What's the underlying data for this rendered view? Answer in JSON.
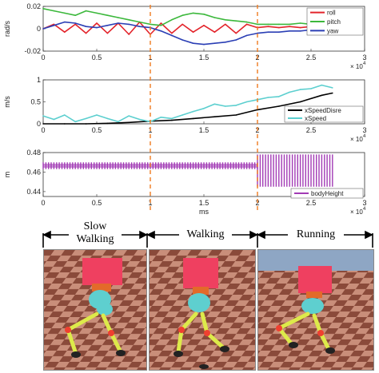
{
  "chart_data": [
    {
      "type": "line",
      "ylabel": "rad/s",
      "xlim": [
        0,
        30000
      ],
      "ylim": [
        -0.02,
        0.02
      ],
      "x_ticks": [
        "0",
        "0.5",
        "1",
        "1.5",
        "2",
        "2.5",
        "3"
      ],
      "y_ticks": [
        "0.02",
        "0",
        "-0.02"
      ],
      "x_multiplier": "× 10",
      "x_multiplier_exp": "4",
      "legend_position": "top-right",
      "series": [
        {
          "name": "roll",
          "color": "#e3242b",
          "x": [
            0,
            1000,
            2000,
            3000,
            4000,
            5000,
            6000,
            7000,
            8000,
            9000,
            10000,
            11000,
            12000,
            13000,
            14000,
            15000,
            16000,
            17000,
            18000,
            19000,
            20000,
            21000,
            22000,
            23000,
            24000,
            25000,
            26000,
            27000
          ],
          "y": [
            0.0,
            0.004,
            -0.003,
            0.004,
            -0.004,
            0.005,
            -0.004,
            0.005,
            -0.005,
            0.006,
            -0.005,
            0.005,
            -0.004,
            0.004,
            -0.003,
            0.003,
            -0.003,
            0.004,
            -0.004,
            0.004,
            0.001,
            0.002,
            0.001,
            0.002,
            0.001,
            0.002,
            0.001,
            0.002
          ]
        },
        {
          "name": "pitch",
          "color": "#3cb83c",
          "x": [
            0,
            1000,
            2000,
            3000,
            4000,
            5000,
            6000,
            7000,
            8000,
            9000,
            10000,
            11000,
            12000,
            13000,
            14000,
            15000,
            16000,
            17000,
            18000,
            19000,
            20000,
            21000,
            22000,
            23000,
            24000,
            25000,
            26000,
            27000
          ],
          "y": [
            0.018,
            0.016,
            0.014,
            0.012,
            0.016,
            0.014,
            0.012,
            0.01,
            0.008,
            0.006,
            0.004,
            0.003,
            0.008,
            0.012,
            0.014,
            0.013,
            0.01,
            0.008,
            0.007,
            0.006,
            0.004,
            0.004,
            0.004,
            0.004,
            0.005,
            0.004,
            0.004,
            0.004
          ]
        },
        {
          "name": "yaw",
          "color": "#2b3fb5",
          "x": [
            0,
            1000,
            2000,
            3000,
            4000,
            5000,
            6000,
            7000,
            8000,
            9000,
            10000,
            11000,
            12000,
            13000,
            14000,
            15000,
            16000,
            17000,
            18000,
            19000,
            20000,
            21000,
            22000,
            23000,
            24000,
            25000,
            26000,
            27000
          ],
          "y": [
            0.0,
            0.003,
            0.006,
            0.005,
            0.002,
            0.001,
            0.003,
            0.005,
            0.004,
            0.002,
            0.001,
            -0.002,
            -0.006,
            -0.01,
            -0.013,
            -0.014,
            -0.013,
            -0.012,
            -0.01,
            -0.006,
            -0.004,
            -0.003,
            -0.003,
            -0.002,
            -0.002,
            -0.001,
            -0.001,
            -0.001
          ]
        }
      ]
    },
    {
      "type": "line",
      "ylabel": "m/s",
      "xlim": [
        0,
        30000
      ],
      "ylim": [
        0,
        1
      ],
      "x_ticks": [
        "0",
        "0.5",
        "1",
        "1.5",
        "2",
        "2.5",
        "3"
      ],
      "y_ticks": [
        "1",
        "0.5",
        "0"
      ],
      "x_multiplier": "× 10",
      "x_multiplier_exp": "4",
      "legend_position": "bottom-right",
      "series": [
        {
          "name": "xSpeedDisre",
          "color": "#000000",
          "x": [
            0,
            2000,
            4000,
            6000,
            8000,
            10000,
            12000,
            14000,
            16000,
            18000,
            20000,
            22000,
            24000,
            26000,
            27000
          ],
          "y": [
            0.0,
            0.0,
            0.0,
            0.01,
            0.03,
            0.06,
            0.08,
            0.12,
            0.16,
            0.2,
            0.32,
            0.4,
            0.5,
            0.65,
            0.7
          ]
        },
        {
          "name": "xSpeed",
          "color": "#5ccfcf",
          "x": [
            0,
            1000,
            2000,
            3000,
            4000,
            5000,
            6000,
            7000,
            8000,
            9000,
            10000,
            11000,
            12000,
            13000,
            14000,
            15000,
            16000,
            17000,
            18000,
            19000,
            20000,
            21000,
            22000,
            23000,
            24000,
            25000,
            26000,
            27000
          ],
          "y": [
            0.18,
            0.1,
            0.2,
            0.05,
            0.12,
            0.2,
            0.12,
            0.05,
            0.18,
            0.1,
            0.05,
            0.15,
            0.12,
            0.2,
            0.28,
            0.35,
            0.45,
            0.4,
            0.42,
            0.5,
            0.55,
            0.6,
            0.62,
            0.72,
            0.78,
            0.8,
            0.88,
            0.82
          ]
        }
      ]
    },
    {
      "type": "line",
      "ylabel": "m",
      "xlabel": "ms",
      "xlim": [
        0,
        30000
      ],
      "ylim": [
        0.435,
        0.48
      ],
      "x_ticks": [
        "0",
        "0.5",
        "1",
        "1.5",
        "2",
        "2.5",
        "3"
      ],
      "y_ticks": [
        "0.48",
        "0.46",
        "0.44"
      ],
      "x_multiplier": "× 10",
      "x_multiplier_exp": "4",
      "legend_position": "bottom-right",
      "series": [
        {
          "name": "bodyHeight",
          "color": "#a23bb5",
          "segments": [
            {
              "x_range": [
                0,
                20000
              ],
              "low": 0.463,
              "high": 0.47
            },
            {
              "x_range": [
                20000,
                27000
              ],
              "low": 0.445,
              "high": 0.478
            }
          ]
        }
      ]
    }
  ],
  "phases": {
    "boundaries_x": [
      10000,
      20000
    ],
    "labels": [
      "Slow\nWalking",
      "Walking",
      "Running"
    ]
  },
  "colors": {
    "phase_line": "#f07b1f",
    "robot_body": "#ef4060",
    "robot_head": "#5ecfcf",
    "robot_legs": "#ddea4a",
    "joints": "#ef4030"
  }
}
